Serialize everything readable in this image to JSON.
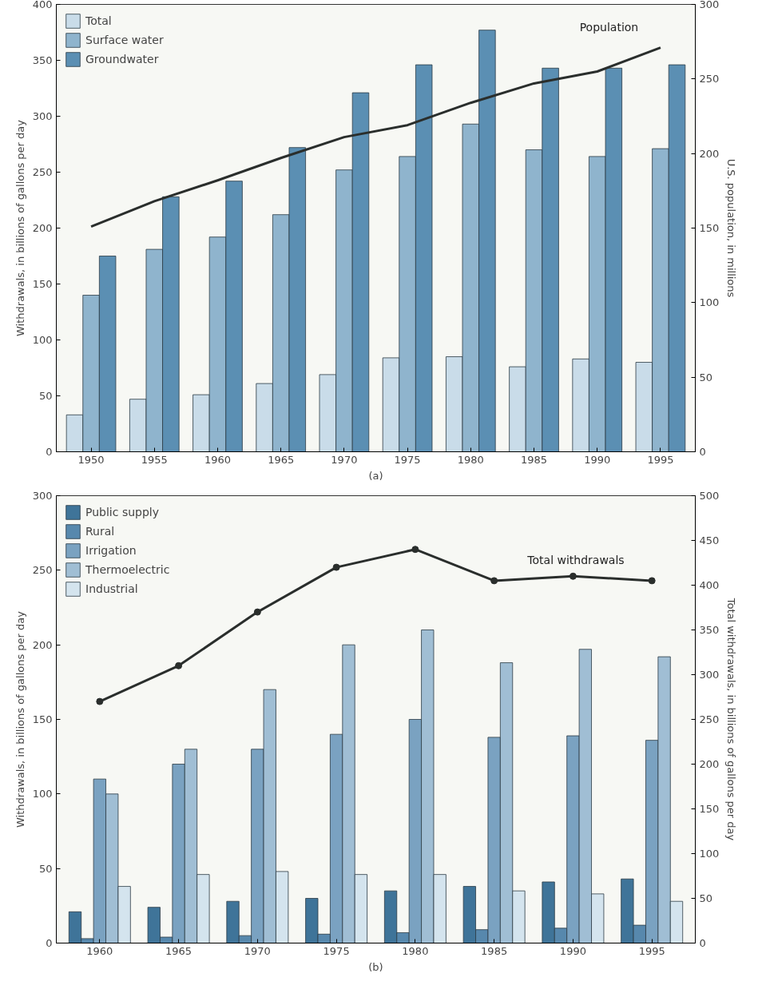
{
  "chart_data": [
    {
      "type": "bar",
      "xlabel": "(a)",
      "ylabel": "Withdrawals, in billions of gallons per day",
      "y2label": "U.S. population, in millions",
      "categories": [
        "1950",
        "1955",
        "1960",
        "1965",
        "1970",
        "1975",
        "1980",
        "1985",
        "1990",
        "1995"
      ],
      "series": [
        {
          "name": "Total",
          "color": "#c9dce9",
          "values": [
            33,
            47,
            51,
            61,
            69,
            84,
            85,
            76,
            83,
            80
          ]
        },
        {
          "name": "Surface water",
          "color": "#8fb4cd",
          "values": [
            140,
            181,
            192,
            212,
            252,
            264,
            293,
            270,
            264,
            271
          ]
        },
        {
          "name": "Groundwater",
          "color": "#5b8fb3",
          "values": [
            175,
            228,
            242,
            272,
            321,
            346,
            377,
            343,
            343,
            346
          ]
        },
        {
          "name": "Population",
          "type": "line",
          "axis": "y2",
          "color": "#2a2e2c",
          "values": [
            151,
            168,
            182,
            197,
            211,
            219,
            234,
            247,
            255,
            271
          ]
        }
      ],
      "ylim": [
        0,
        400
      ],
      "yticks": [
        0,
        50,
        100,
        150,
        200,
        250,
        300,
        350,
        400
      ],
      "y2lim": [
        0,
        300
      ],
      "y2ticks": [
        0,
        50,
        100,
        150,
        200,
        250,
        300
      ],
      "legend": "top left",
      "marker": "none"
    },
    {
      "type": "bar",
      "xlabel": "(b)",
      "ylabel": "Withdrawals, in billions of gallons per day",
      "y2label": "Total withdrawals, in billions of gallons per day",
      "categories": [
        "1960",
        "1965",
        "1970",
        "1975",
        "1980",
        "1985",
        "1990",
        "1995"
      ],
      "series": [
        {
          "name": "Public supply",
          "color": "#3f7499",
          "values": [
            21,
            24,
            28,
            30,
            35,
            38,
            41,
            43
          ]
        },
        {
          "name": "Rural",
          "color": "#5788ad",
          "values": [
            3,
            4,
            5,
            6,
            7,
            9,
            10,
            12
          ]
        },
        {
          "name": "Irrigation",
          "color": "#7aa2c1",
          "values": [
            110,
            120,
            130,
            140,
            150,
            138,
            139,
            136
          ]
        },
        {
          "name": "Thermoelectric",
          "color": "#a0bed4",
          "values": [
            100,
            130,
            170,
            200,
            210,
            188,
            197,
            192
          ]
        },
        {
          "name": "Industrial",
          "color": "#d4e4ee",
          "values": [
            38,
            46,
            48,
            46,
            46,
            35,
            33,
            28
          ]
        },
        {
          "name": "Total withdrawals",
          "type": "line",
          "axis": "y2",
          "color": "#2a2e2c",
          "values": [
            270,
            310,
            370,
            420,
            440,
            405,
            410,
            405
          ]
        }
      ],
      "ylim": [
        0,
        300
      ],
      "yticks": [
        0,
        50,
        100,
        150,
        200,
        250,
        300
      ],
      "y2lim": [
        0,
        500
      ],
      "y2ticks": [
        0,
        50,
        100,
        150,
        200,
        250,
        300,
        350,
        400,
        450,
        500
      ],
      "legend": "top left",
      "marker": "circle"
    }
  ]
}
